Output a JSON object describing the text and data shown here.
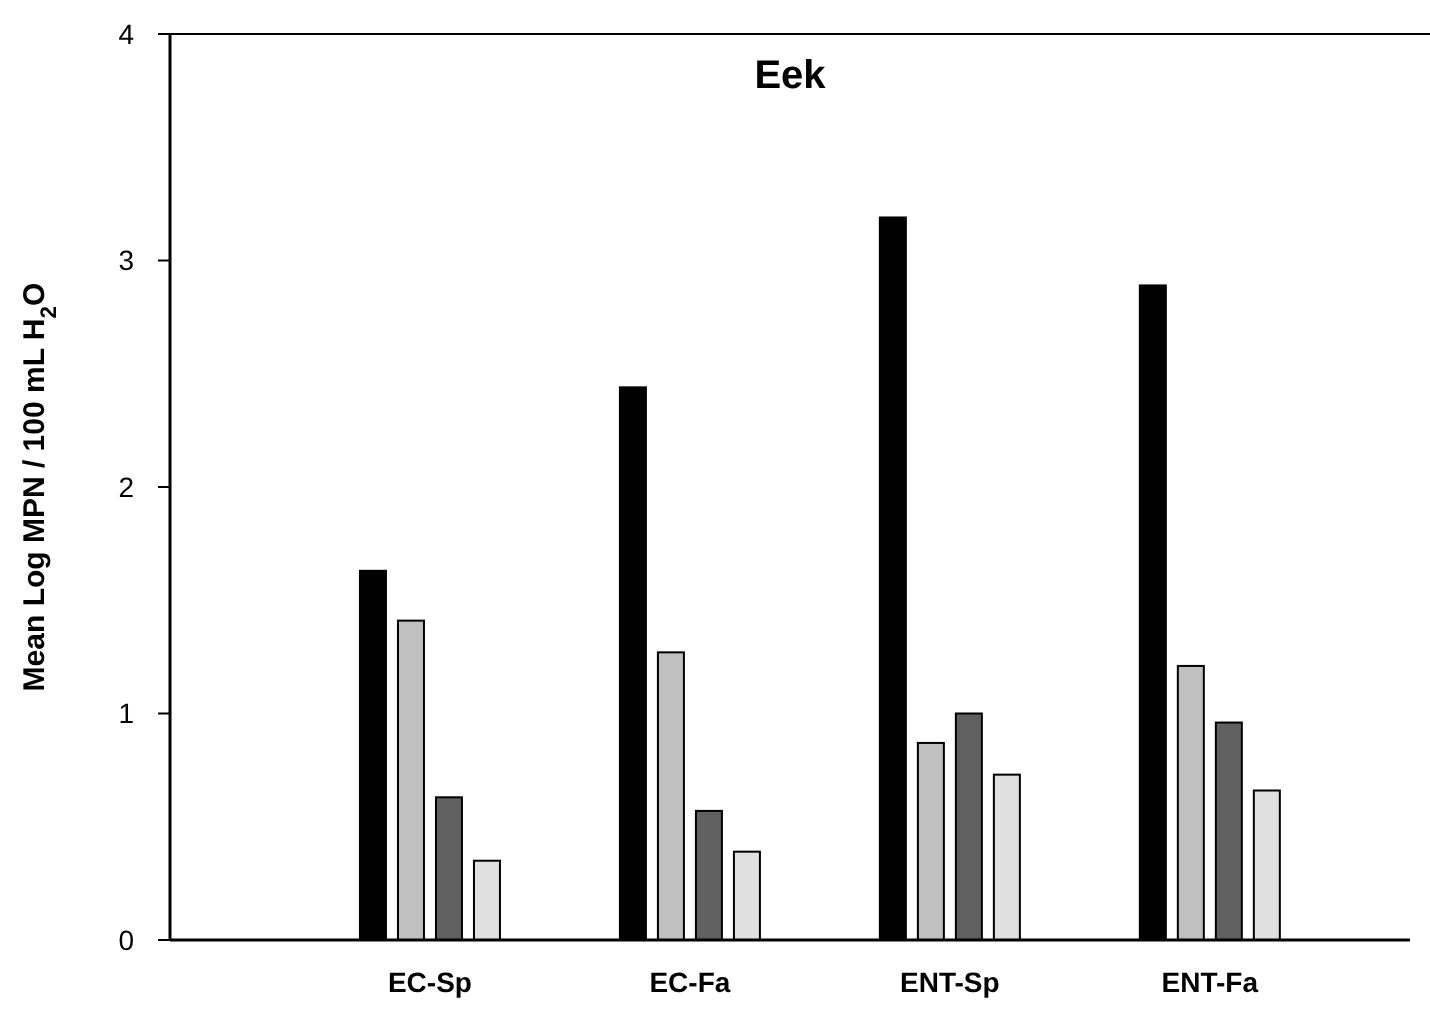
{
  "chart_data": {
    "type": "bar",
    "title": "Eek",
    "ylabel": "Mean Log MPN / 100 mL H$_{2}$O",
    "categories": [
      "EC-Sp",
      "EC-Fa",
      "ENT-Sp",
      "ENT-Fa"
    ],
    "series": [
      {
        "color": "#000000",
        "values": [
          1.63,
          2.44,
          3.19,
          2.89
        ]
      },
      {
        "color": "#c0c0c0",
        "values": [
          1.41,
          1.27,
          0.87,
          1.21
        ]
      },
      {
        "color": "#606060",
        "values": [
          0.63,
          0.57,
          1.0,
          0.96
        ]
      },
      {
        "color": "#e0e0e0",
        "values": [
          0.35,
          0.39,
          0.73,
          0.66
        ]
      }
    ],
    "ylim": [
      0,
      4
    ],
    "yticks": [
      0,
      1,
      2,
      3,
      4
    ],
    "grid": false
  }
}
